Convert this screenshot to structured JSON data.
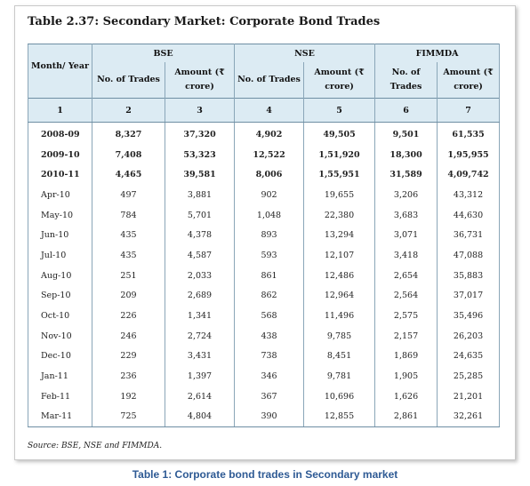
{
  "title": "Table 2.37: Secondary Market: Corporate Bond Trades",
  "header": {
    "month_year": "Month/ Year",
    "groups": [
      "BSE",
      "NSE",
      "FIMMDA"
    ],
    "sub": [
      "No. of Trades",
      "Amount (₹ crore)",
      "No. of Trades",
      "Amount (₹ crore)",
      "No. of Trades",
      "Amount (₹ crore)"
    ],
    "numbers": [
      "1",
      "2",
      "3",
      "4",
      "5",
      "6",
      "7"
    ]
  },
  "rows": [
    {
      "bold": true,
      "cells": [
        "2008-09",
        "8,327",
        "37,320",
        "4,902",
        "49,505",
        "9,501",
        "61,535"
      ]
    },
    {
      "bold": true,
      "cells": [
        "2009-10",
        "7,408",
        "53,323",
        "12,522",
        "1,51,920",
        "18,300",
        "1,95,955"
      ]
    },
    {
      "bold": true,
      "cells": [
        "2010-11",
        "4,465",
        "39,581",
        "8,006",
        "1,55,951",
        "31,589",
        "4,09,742"
      ]
    },
    {
      "bold": false,
      "cells": [
        "Apr-10",
        "497",
        "3,881",
        "902",
        "19,655",
        "3,206",
        "43,312"
      ]
    },
    {
      "bold": false,
      "cells": [
        "May-10",
        "784",
        "5,701",
        "1,048",
        "22,380",
        "3,683",
        "44,630"
      ]
    },
    {
      "bold": false,
      "cells": [
        "Jun-10",
        "435",
        "4,378",
        "893",
        "13,294",
        "3,071",
        "36,731"
      ]
    },
    {
      "bold": false,
      "cells": [
        "Jul-10",
        "435",
        "4,587",
        "593",
        "12,107",
        "3,418",
        "47,088"
      ]
    },
    {
      "bold": false,
      "cells": [
        "Aug-10",
        "251",
        "2,033",
        "861",
        "12,486",
        "2,654",
        "35,883"
      ]
    },
    {
      "bold": false,
      "cells": [
        "Sep-10",
        "209",
        "2,689",
        "862",
        "12,964",
        "2,564",
        "37,017"
      ]
    },
    {
      "bold": false,
      "cells": [
        "Oct-10",
        "226",
        "1,341",
        "568",
        "11,496",
        "2,575",
        "35,496"
      ]
    },
    {
      "bold": false,
      "cells": [
        "Nov-10",
        "246",
        "2,724",
        "438",
        "9,785",
        "2,157",
        "26,203"
      ]
    },
    {
      "bold": false,
      "cells": [
        "Dec-10",
        "229",
        "3,431",
        "738",
        "8,451",
        "1,869",
        "24,635"
      ]
    },
    {
      "bold": false,
      "cells": [
        "Jan-11",
        "236",
        "1,397",
        "346",
        "9,781",
        "1,905",
        "25,285"
      ]
    },
    {
      "bold": false,
      "cells": [
        "Feb-11",
        "192",
        "2,614",
        "367",
        "10,696",
        "1,626",
        "21,201"
      ]
    },
    {
      "bold": false,
      "cells": [
        "Mar-11",
        "725",
        "4,804",
        "390",
        "12,855",
        "2,861",
        "32,261"
      ]
    }
  ],
  "source": "Source: BSE, NSE and FIMMDA.",
  "caption": "Table 1: Corporate bond trades in Secondary market"
}
